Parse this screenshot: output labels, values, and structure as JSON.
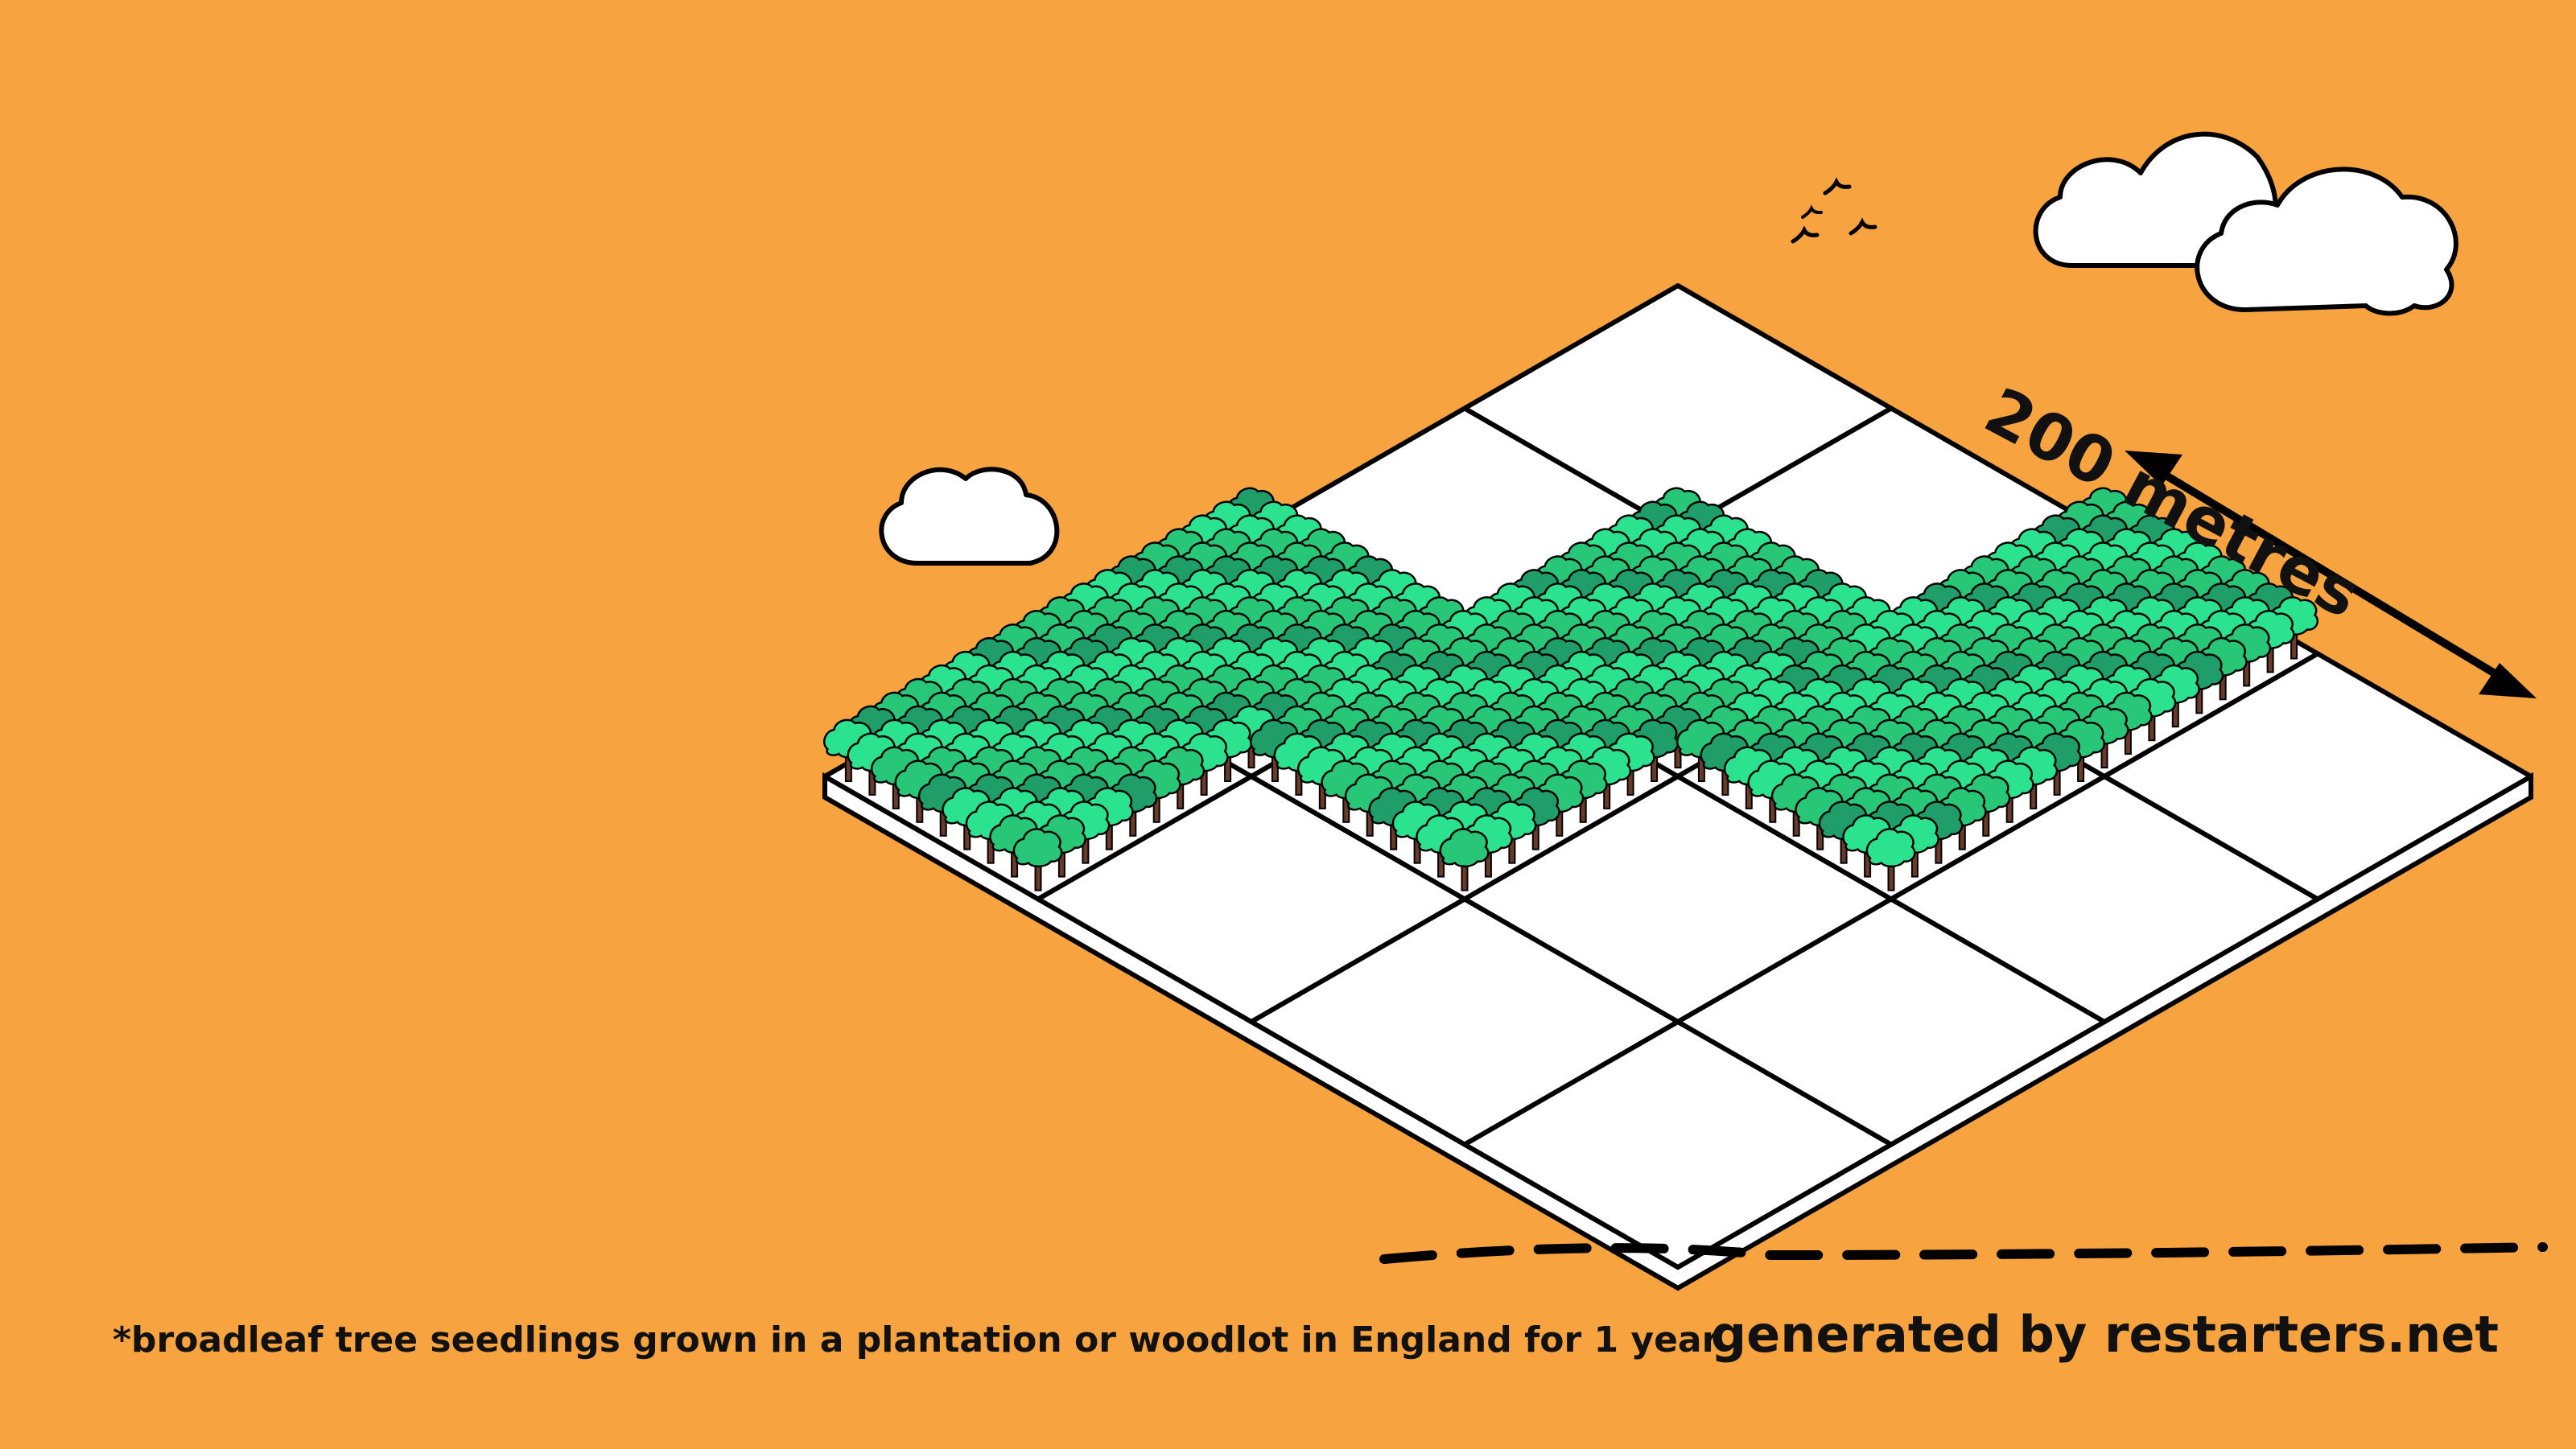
{
  "scale": {
    "label": "200 metres"
  },
  "footnote": "*broadleaf tree seedlings grown in a plantation or woodlot in England for 1 year",
  "credit": "generated by restarters.net",
  "grid": {
    "rows": 4,
    "cols": 4,
    "tree_cells": [
      [
        0,
        0
      ],
      [
        0,
        1
      ],
      [
        1,
        1
      ],
      [
        1,
        2
      ],
      [
        2,
        2
      ],
      [
        2,
        3
      ]
    ]
  },
  "colors": {
    "background": "#F7A33F",
    "tile": "#FFFFFF",
    "outline": "#000000",
    "tree_light": "#2BE38F",
    "tree_mid": "#28C777",
    "tree_dark": "#1F9E6A",
    "trunk": "#6B3B2A"
  },
  "icons": [
    "cloud-icon",
    "bird-icon",
    "double-arrow-icon",
    "tree-icon"
  ]
}
